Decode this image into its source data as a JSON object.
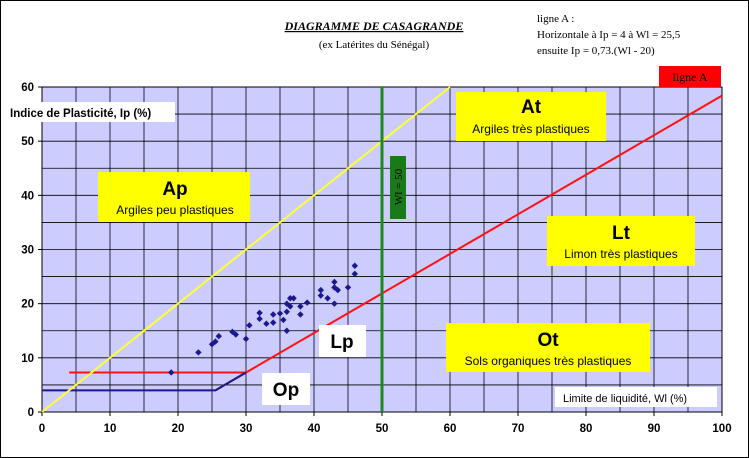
{
  "chart_data": {
    "type": "scatter",
    "title": "DIAGRAMME DE CASAGRANDE",
    "subtitle": "(ex Latérites du Sénégal)",
    "xlabel": "Limite de liquidité, Wl (%)",
    "ylabel": "Indice de Plasticité, Ip (%)",
    "xlim": [
      0,
      100
    ],
    "ylim": [
      0,
      60
    ],
    "xticks": [
      0,
      10,
      20,
      30,
      40,
      50,
      60,
      70,
      80,
      90,
      100
    ],
    "yticks": [
      0,
      10,
      20,
      30,
      40,
      50,
      60
    ],
    "grid": true,
    "note": {
      "line1": "ligne A :",
      "line2": "Horizontale à Ip = 4 à Wl = 25,5",
      "line3": "ensuite Ip = 0,73.(Wl - 20)"
    },
    "series": [
      {
        "name": "",
        "marker": "diamond",
        "color": "#1a1a8c",
        "points": [
          [
            19,
            7.3
          ],
          [
            23,
            11
          ],
          [
            25,
            12.5
          ],
          [
            25.5,
            13
          ],
          [
            26,
            14
          ],
          [
            28,
            14.8
          ],
          [
            28.5,
            14.3
          ],
          [
            30,
            13.5
          ],
          [
            30.5,
            16
          ],
          [
            32,
            17.2
          ],
          [
            32,
            18.3
          ],
          [
            33,
            16.3
          ],
          [
            34,
            18
          ],
          [
            34,
            16.5
          ],
          [
            35,
            18.2
          ],
          [
            35.5,
            17
          ],
          [
            36,
            20
          ],
          [
            36,
            18.5
          ],
          [
            36.5,
            19.5
          ],
          [
            36.5,
            21
          ],
          [
            37,
            21
          ],
          [
            38,
            19.5
          ],
          [
            38,
            18
          ],
          [
            39,
            20.2
          ],
          [
            41,
            21.5
          ],
          [
            41,
            22.5
          ],
          [
            42,
            21
          ],
          [
            43,
            24
          ],
          [
            43,
            23
          ],
          [
            43.5,
            22.5
          ],
          [
            43,
            20
          ],
          [
            45,
            23
          ],
          [
            46,
            25.5
          ],
          [
            46,
            27
          ],
          [
            36,
            15
          ]
        ]
      }
    ],
    "lines": [
      {
        "label": "ligne A",
        "color": "#ff1111",
        "points": [
          [
            25.5,
            4
          ],
          [
            100,
            58.4
          ]
        ]
      },
      {
        "label": "",
        "color": "#ff1111",
        "points": [
          [
            4,
            7.3
          ],
          [
            30,
            7.3
          ]
        ]
      },
      {
        "label": "",
        "color": "#1a1a8c",
        "points": [
          [
            0,
            4
          ],
          [
            25.5,
            4
          ],
          [
            30,
            7.3
          ]
        ]
      },
      {
        "label": "",
        "color": "#ffff33",
        "points": [
          [
            0,
            0
          ],
          [
            60,
            60
          ]
        ]
      },
      {
        "label": "Wl = 50",
        "color": "#1a8c1a",
        "points": [
          [
            50,
            0
          ],
          [
            50,
            60
          ]
        ]
      }
    ],
    "zones": [
      {
        "code": "Ap",
        "description": "Argiles peu plastiques"
      },
      {
        "code": "At",
        "description": "Argiles très plastiques"
      },
      {
        "code": "Lt",
        "description": "Limon très plastiques"
      },
      {
        "code": "Ot",
        "description": "Sols organiques très plastiques"
      },
      {
        "code": "Lp",
        "description": ""
      },
      {
        "code": "Op",
        "description": ""
      }
    ],
    "colors": {
      "plot_background": "#ccccff",
      "zone_label_background": "#ffff00",
      "ligne_a_badge": "#ff0000",
      "wl50_badge": "#1a7a1a"
    }
  }
}
